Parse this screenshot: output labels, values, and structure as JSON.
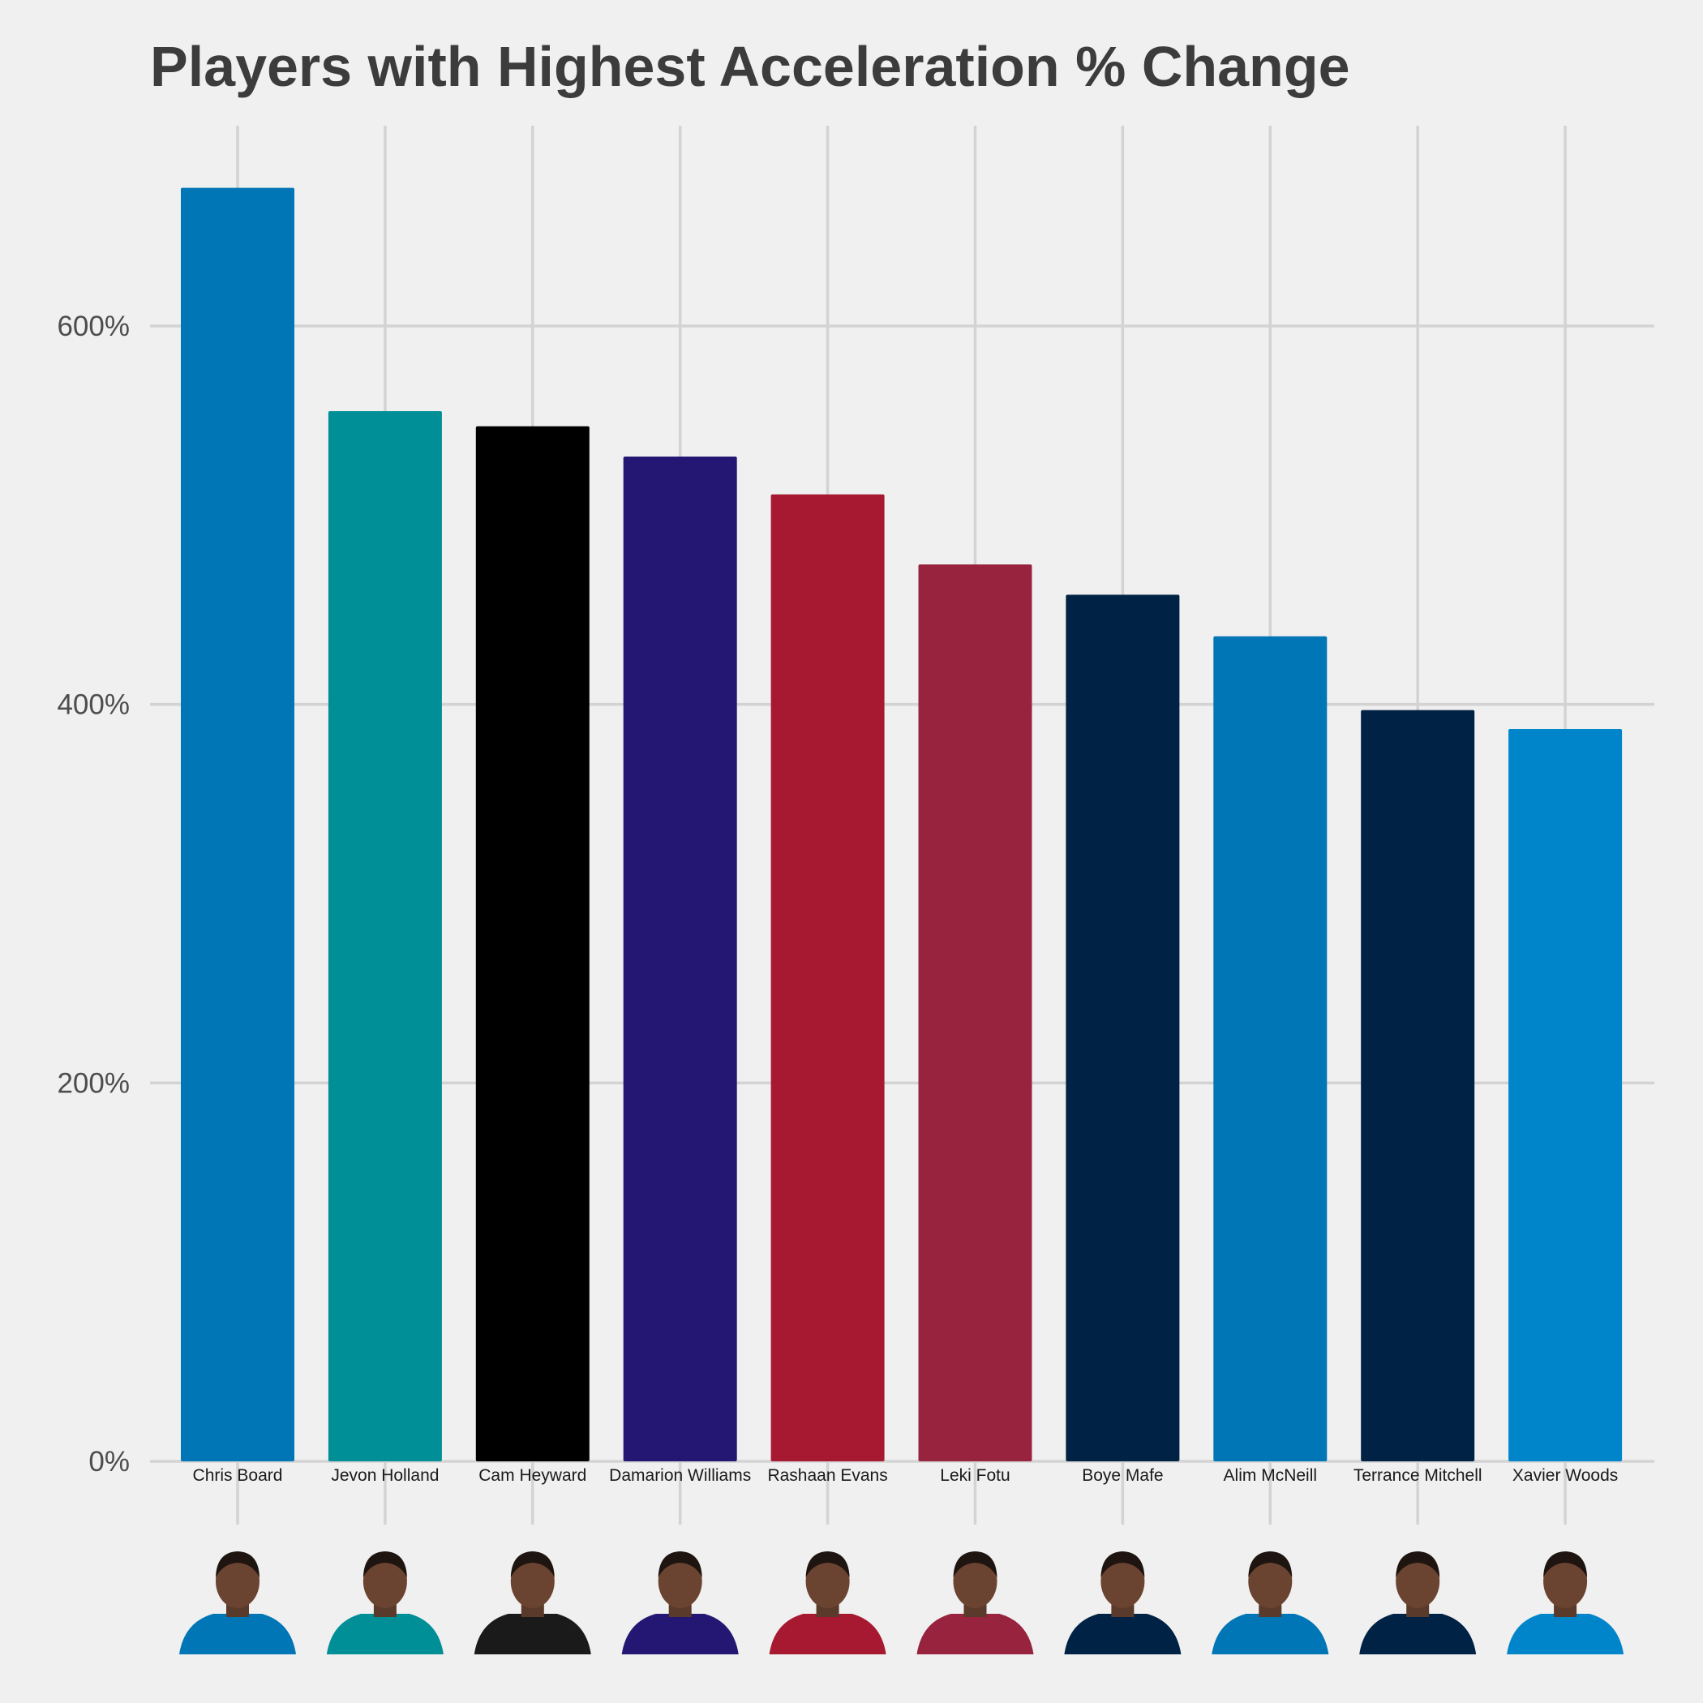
{
  "chart_data": {
    "type": "bar",
    "title": "Players with Highest Acceleration % Change",
    "xlabel": "",
    "ylabel": "",
    "categories": [
      "Chris Board",
      "Jevon Holland",
      "Cam Heyward",
      "Damarion Williams",
      "Rashaan Evans",
      "Leki Fotu",
      "Boye Mafe",
      "Alim McNeill",
      "Terrance Mitchell",
      "Xavier Woods"
    ],
    "values": [
      673,
      555,
      547,
      531,
      511,
      474,
      458,
      436,
      397,
      387
    ],
    "colors": [
      "#0076b6",
      "#008e97",
      "#000000",
      "#241773",
      "#a71930",
      "#97233f",
      "#002244",
      "#0076b6",
      "#002244",
      "#0085ca"
    ],
    "ylim": [
      0,
      690
    ],
    "yticks": [
      0,
      200,
      400,
      600
    ],
    "ytick_labels": [
      "0%",
      "200%",
      "400%",
      "600%"
    ],
    "grid": true,
    "legend": "none",
    "x_axis_images": [
      "player-headshot",
      "player-headshot",
      "player-headshot",
      "player-headshot",
      "player-headshot",
      "player-headshot",
      "player-headshot",
      "player-headshot",
      "player-headshot",
      "player-headshot"
    ]
  }
}
